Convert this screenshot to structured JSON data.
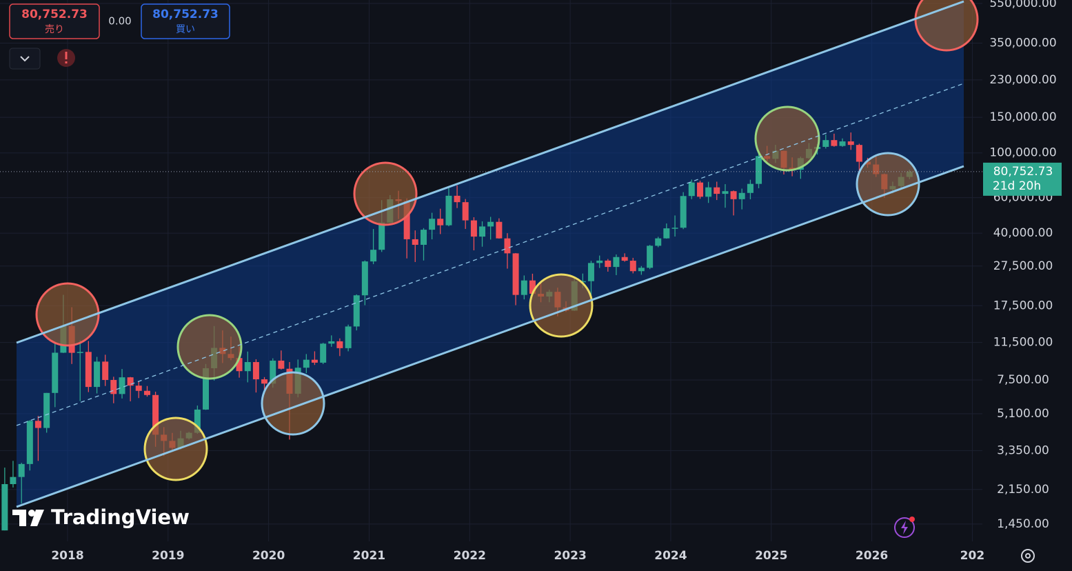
{
  "chart_data": {
    "type": "candlestick",
    "x": [
      2017.375,
      2017.458,
      2017.542,
      2017.625,
      2017.708,
      2017.792,
      2017.875,
      2017.958,
      2018.042,
      2018.125,
      2018.208,
      2018.292,
      2018.375,
      2018.458,
      2018.542,
      2018.625,
      2018.708,
      2018.792,
      2018.875,
      2018.958,
      2019.042,
      2019.125,
      2019.208,
      2019.292,
      2019.375,
      2019.458,
      2019.542,
      2019.625,
      2019.708,
      2019.792,
      2019.875,
      2019.958,
      2020.042,
      2020.125,
      2020.208,
      2020.292,
      2020.375,
      2020.458,
      2020.542,
      2020.625,
      2020.708,
      2020.792,
      2020.875,
      2020.958,
      2021.042,
      2021.125,
      2021.208,
      2021.292,
      2021.375,
      2021.458,
      2021.542,
      2021.625,
      2021.708,
      2021.792,
      2021.875,
      2021.958,
      2022.042,
      2022.125,
      2022.208,
      2022.292,
      2022.375,
      2022.458,
      2022.542,
      2022.625,
      2022.708,
      2022.792,
      2022.875,
      2022.958,
      2023.042,
      2023.125,
      2023.208,
      2023.292,
      2023.375,
      2023.458,
      2023.542,
      2023.625,
      2023.708,
      2023.792,
      2023.875,
      2023.958,
      2024.042,
      2024.125,
      2024.208,
      2024.292,
      2024.375,
      2024.458,
      2024.542,
      2024.625,
      2024.708,
      2024.792,
      2024.875,
      2024.958,
      2025.042,
      2025.125,
      2025.208,
      2025.292,
      2025.375,
      2025.458,
      2025.542,
      2025.625,
      2025.708,
      2025.792,
      2025.875,
      2025.958,
      2026.042,
      2026.125,
      2026.208,
      2026.292,
      2026.375
    ],
    "open": [
      1348,
      2286,
      2480,
      2875,
      4703,
      4338,
      6468,
      10233,
      13880,
      10221,
      10326,
      6926,
      9246,
      7500,
      6390,
      7730,
      7030,
      6625,
      6317,
      4017,
      3742,
      3457,
      3854,
      4105,
      5350,
      8574,
      10817,
      10085,
      9630,
      8293,
      9199,
      7557,
      7193,
      9350,
      8523,
      6410,
      8624,
      9446,
      9135,
      11351,
      11655,
      10779,
      13804,
      19700,
      28990,
      33114,
      45137,
      58918,
      57750,
      37332,
      35041,
      41626,
      47166,
      43790,
      61318,
      57005,
      46306,
      38483,
      43194,
      45538,
      37714,
      31792,
      19785,
      23336,
      20050,
      19432,
      20496,
      17168,
      16548,
      23139,
      23147,
      28478,
      29268,
      27220,
      30477,
      29230,
      25940,
      26962,
      34660,
      37720,
      42284,
      42580,
      61130,
      71333,
      60637,
      67491,
      62678,
      64619,
      58969,
      63329,
      70215,
      96407,
      93429,
      102430,
      84350,
      82550,
      94200,
      104600,
      107100,
      115700,
      108200,
      114000,
      109500,
      90400,
      87600,
      78500,
      66000,
      68500,
      76000
    ],
    "high": [
      2760,
      2980,
      2916,
      4736,
      4975,
      6470,
      11500,
      19800,
      17200,
      11800,
      11700,
      9760,
      10000,
      7780,
      8500,
      7760,
      7400,
      7000,
      6560,
      4380,
      4100,
      4200,
      4150,
      5600,
      9000,
      13880,
      13200,
      12300,
      10950,
      10370,
      9500,
      7750,
      9600,
      10500,
      9200,
      9470,
      10080,
      10400,
      11450,
      12470,
      12050,
      14100,
      19900,
      29300,
      41950,
      58350,
      61800,
      64900,
      59500,
      41300,
      42400,
      50500,
      52900,
      67000,
      69000,
      59100,
      48000,
      45800,
      48200,
      47400,
      40000,
      31900,
      24700,
      25200,
      22800,
      21000,
      21480,
      18400,
      23950,
      25250,
      29200,
      31000,
      29800,
      31400,
      31800,
      30200,
      27500,
      35000,
      38400,
      44700,
      48970,
      63900,
      73800,
      72800,
      71900,
      72000,
      70000,
      65100,
      66500,
      73600,
      99600,
      108300,
      109600,
      102500,
      95000,
      95800,
      111900,
      110600,
      123200,
      124500,
      117900,
      126200,
      111000,
      94500,
      97000,
      79000,
      72000,
      79500,
      82500
    ],
    "low": [
      1348,
      2200,
      1830,
      2670,
      2980,
      4110,
      5500,
      10200,
      9000,
      5900,
      6530,
      6430,
      7000,
      5750,
      6070,
      5880,
      6100,
      6200,
      3500,
      3150,
      3350,
      3390,
      3800,
      4060,
      5330,
      7450,
      9100,
      9400,
      7700,
      7300,
      6500,
      6400,
      6870,
      8450,
      3800,
      6150,
      8100,
      8900,
      8990,
      10950,
      9850,
      10400,
      13200,
      17600,
      28100,
      32300,
      45000,
      47000,
      30000,
      28800,
      29300,
      37300,
      39600,
      43300,
      53300,
      42000,
      32900,
      34300,
      37200,
      37600,
      26700,
      17600,
      18800,
      19600,
      18200,
      18200,
      15500,
      16300,
      16500,
      21400,
      19550,
      26900,
      25800,
      24800,
      28900,
      25300,
      24900,
      26550,
      34100,
      37600,
      38500,
      41900,
      59000,
      59200,
      56500,
      58400,
      53500,
      49000,
      52500,
      58900,
      66800,
      90500,
      89200,
      78200,
      76600,
      74400,
      93300,
      98200,
      105100,
      107300,
      107200,
      103500,
      80600,
      84400,
      76000,
      60000,
      63000,
      66000,
      74000
    ],
    "close": [
      2286,
      2480,
      2875,
      4703,
      4338,
      6468,
      10233,
      13880,
      10221,
      10326,
      6926,
      9246,
      7500,
      6390,
      7730,
      7030,
      6625,
      6317,
      4017,
      3742,
      3457,
      3854,
      4105,
      5350,
      8574,
      10817,
      10085,
      9630,
      8293,
      9199,
      7557,
      7193,
      9350,
      8523,
      6410,
      8624,
      9446,
      9135,
      11351,
      11655,
      10779,
      13804,
      19700,
      28990,
      33114,
      45137,
      58918,
      57750,
      37332,
      35041,
      41626,
      47166,
      43790,
      61318,
      57005,
      46306,
      38483,
      43194,
      45538,
      37714,
      31792,
      19785,
      23336,
      20050,
      19432,
      20496,
      17168,
      16548,
      23139,
      23147,
      28478,
      29268,
      27220,
      30477,
      29230,
      25940,
      26962,
      34660,
      37720,
      42284,
      42580,
      61130,
      71333,
      60637,
      67491,
      62678,
      64619,
      58969,
      63329,
      70215,
      96407,
      93429,
      102430,
      84350,
      82550,
      94200,
      104600,
      107100,
      115700,
      108200,
      114000,
      109500,
      90400,
      87600,
      78500,
      66000,
      68500,
      76000,
      80752.73
    ],
    "up_color": "#2ea88f",
    "down_color": "#ef4f56",
    "log_scale": true,
    "grid": true,
    "xlim": [
      2017.328,
      2027.1
    ],
    "ylim": [
      1190,
      572000
    ],
    "xticks": [
      2018,
      2019,
      2020,
      2021,
      2022,
      2023,
      2024,
      2025,
      2026,
      {
        "value": 2027,
        "label": "202"
      }
    ],
    "yticks": [
      {
        "value": 1450,
        "label": "1,450.00"
      },
      {
        "value": 2150,
        "label": "2,150.00"
      },
      {
        "value": 3350,
        "label": "3,350.00"
      },
      {
        "value": 5100,
        "label": "5,100.00"
      },
      {
        "value": 7500,
        "label": "7,500.00"
      },
      {
        "value": 11500,
        "label": "11,500.00"
      },
      {
        "value": 17500,
        "label": "17,500.00"
      },
      {
        "value": 27500,
        "label": "27,500.00"
      },
      {
        "value": 40000,
        "label": "40,000.00"
      },
      {
        "value": 60000,
        "label": "60,000.00"
      },
      {
        "value": 100000,
        "label": "100,000.00"
      },
      {
        "value": 150000,
        "label": "150,000.00"
      },
      {
        "value": 230000,
        "label": "230,000.00"
      },
      {
        "value": 350000,
        "label": "350,000.00"
      },
      {
        "value": 550000,
        "label": "550,000.00"
      }
    ],
    "last_price": {
      "value": 80752.73,
      "label": "80,752.73",
      "countdown": "21d 20h"
    }
  },
  "order_panel": {
    "sell_price": "80,752.73",
    "sell_label": "売り",
    "spread": "0.00",
    "buy_price": "80,752.73",
    "buy_label": "買い"
  },
  "branding": "TradingView"
}
